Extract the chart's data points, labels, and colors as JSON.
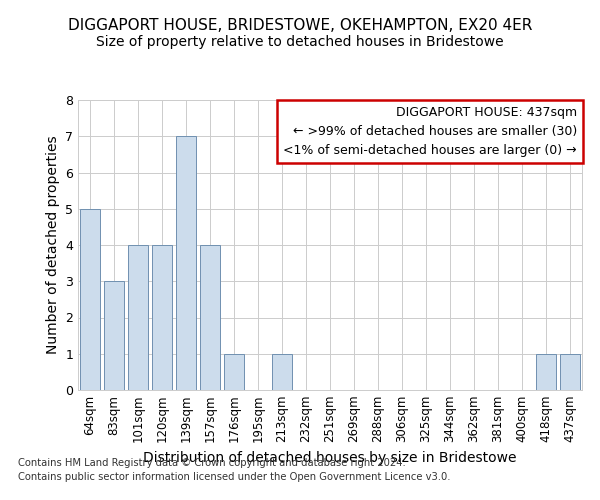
{
  "title1": "DIGGAPORT HOUSE, BRIDESTOWE, OKEHAMPTON, EX20 4ER",
  "title2": "Size of property relative to detached houses in Bridestowe",
  "xlabel": "Distribution of detached houses by size in Bridestowe",
  "ylabel": "Number of detached properties",
  "footer1": "Contains HM Land Registry data © Crown copyright and database right 2024.",
  "footer2": "Contains public sector information licensed under the Open Government Licence v3.0.",
  "categories": [
    "64sqm",
    "83sqm",
    "101sqm",
    "120sqm",
    "139sqm",
    "157sqm",
    "176sqm",
    "195sqm",
    "213sqm",
    "232sqm",
    "251sqm",
    "269sqm",
    "288sqm",
    "306sqm",
    "325sqm",
    "344sqm",
    "362sqm",
    "381sqm",
    "400sqm",
    "418sqm",
    "437sqm"
  ],
  "values": [
    5,
    3,
    4,
    4,
    7,
    4,
    1,
    0,
    1,
    0,
    0,
    0,
    0,
    0,
    0,
    0,
    0,
    0,
    0,
    1,
    1
  ],
  "highlight_index": 20,
  "bar_color_normal": "#ccdcec",
  "bar_edge_color": "#7090b0",
  "highlight_bar_edge": "#cc0000",
  "ylim": [
    0,
    8
  ],
  "yticks": [
    0,
    1,
    2,
    3,
    4,
    5,
    6,
    7,
    8
  ],
  "annotation_title": "DIGGAPORT HOUSE: 437sqm",
  "annotation_line1": "← >99% of detached houses are smaller (30)",
  "annotation_line2": "<1% of semi-detached houses are larger (0) →",
  "annotation_box_color": "#ffffff",
  "annotation_box_edge": "#cc0000",
  "grid_color": "#cccccc",
  "background_color": "#ffffff",
  "title_fontsize": 11,
  "subtitle_fontsize": 10,
  "axis_label_fontsize": 10,
  "tick_fontsize": 8.5
}
